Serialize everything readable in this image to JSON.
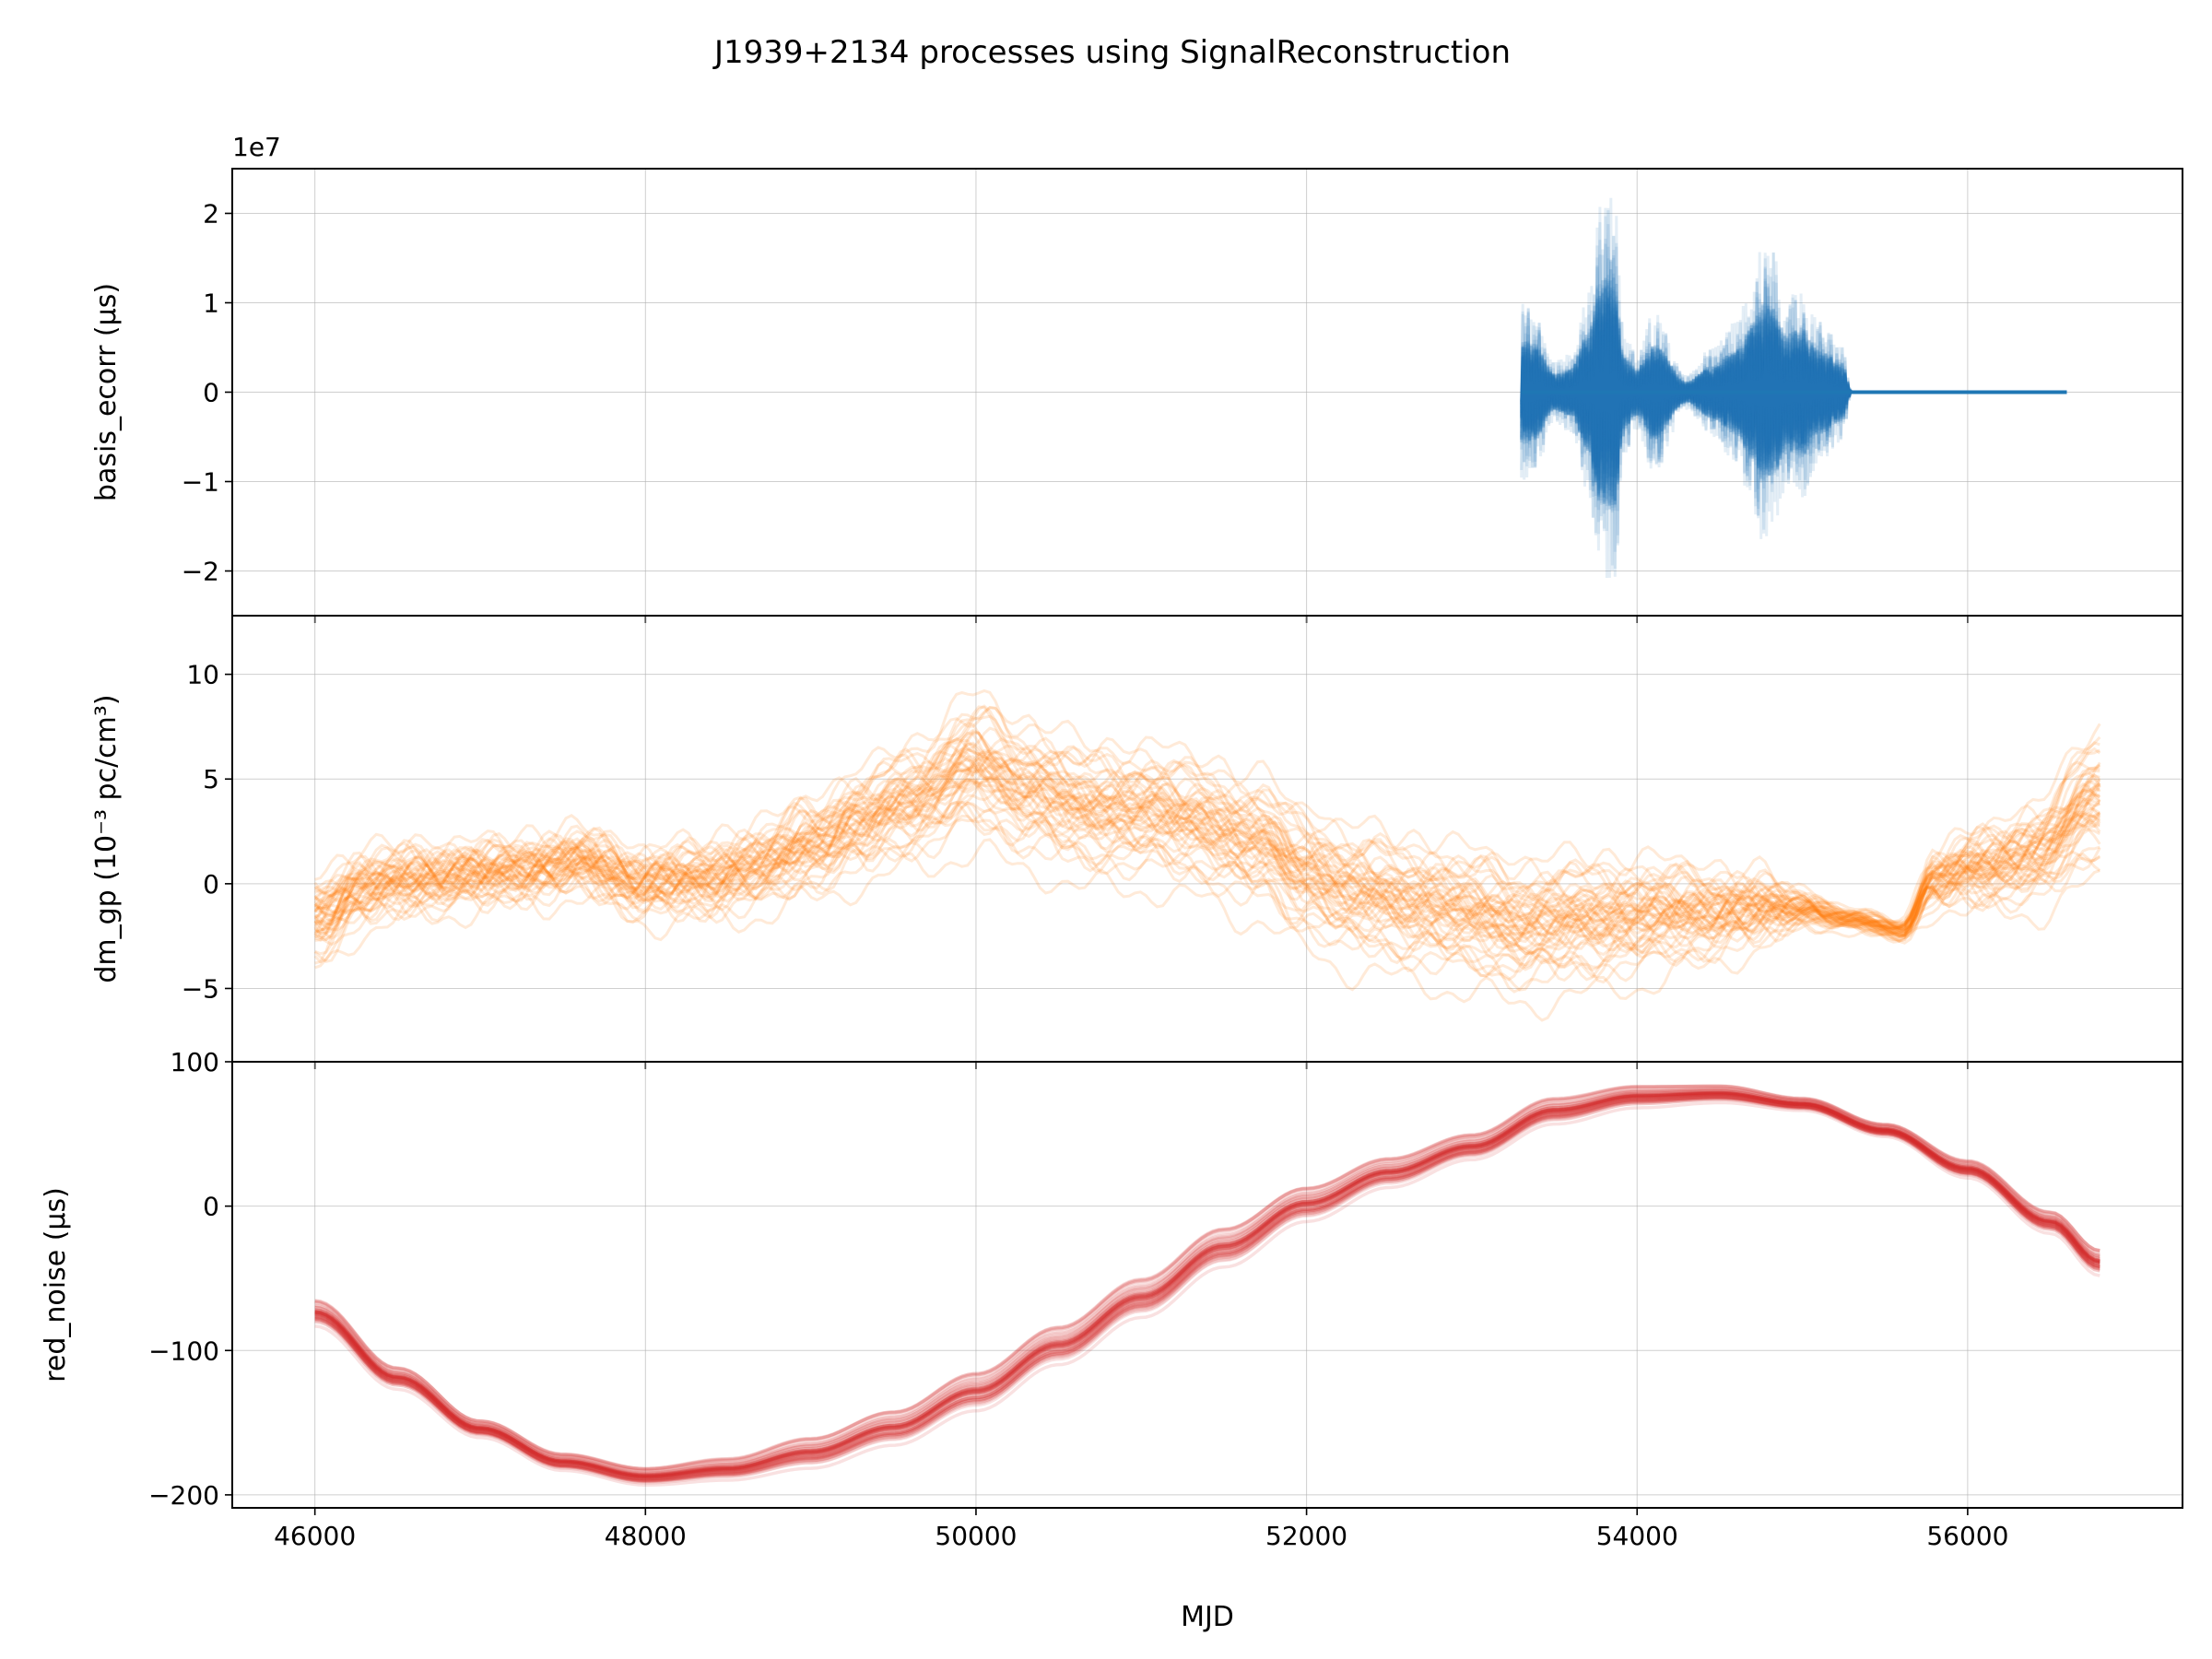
{
  "figure": {
    "title": "J1939+2134 processes using SignalReconstruction",
    "shared_xlabel": "MJD"
  },
  "chart_data": [
    {
      "type": "line",
      "panel": "basis_ecorr",
      "ylabel": "basis_ecorr (μs)",
      "offset_text": "1e7",
      "color": "#1f77b4",
      "xlim": [
        45500,
        57300
      ],
      "ylim": [
        -2.5,
        2.5
      ],
      "x_ticks": [
        46000,
        48000,
        50000,
        52000,
        54000,
        56000
      ],
      "y_ticks": [
        -2,
        -1,
        0,
        1,
        2
      ],
      "y_tick_labels": [
        "−2",
        "−1",
        "0",
        "1",
        "2"
      ],
      "grid": true,
      "n_realizations": 50,
      "x": [
        53300,
        53380,
        53500,
        53600,
        53700,
        53780,
        53860,
        53920,
        54000,
        54100,
        54300,
        54450,
        54600,
        54700,
        54760,
        54820,
        54900,
        55000,
        55100,
        55240,
        55300,
        56600
      ],
      "envelope": [
        1.0,
        0.9,
        0.35,
        0.45,
        1.1,
        2.1,
        2.25,
        0.7,
        0.45,
        0.9,
        0.2,
        0.5,
        0.8,
        1.3,
        1.7,
        1.6,
        1.1,
        1.2,
        0.8,
        0.55,
        0.0,
        0.0
      ]
    },
    {
      "type": "line",
      "panel": "dm_gp",
      "ylabel": "dm_gp (10⁻³ pc/cm³)",
      "color": "#ff7f0e",
      "xlim": [
        45500,
        57300
      ],
      "ylim": [
        -8.5,
        12.8
      ],
      "x_ticks": [
        46000,
        48000,
        50000,
        52000,
        54000,
        56000
      ],
      "y_ticks": [
        -5,
        0,
        5,
        10
      ],
      "y_tick_labels": [
        "−5",
        "0",
        "5",
        "10"
      ],
      "grid": true,
      "n_realizations": 50,
      "x": [
        46000,
        46300,
        46600,
        47000,
        47300,
        47600,
        48000,
        48300,
        48700,
        49000,
        49300,
        49600,
        50000,
        50300,
        50700,
        51000,
        51300,
        51700,
        52000,
        52300,
        52700,
        53000,
        53300,
        53700,
        54000,
        54300,
        54700,
        55000,
        55300,
        55600,
        55800,
        56100,
        56400,
        56800
      ],
      "mean": [
        -2.0,
        -0.5,
        0.0,
        0.2,
        0.5,
        0.8,
        -0.2,
        -0.1,
        0.5,
        1.5,
        2.5,
        3.5,
        5.0,
        4.0,
        3.0,
        3.0,
        2.5,
        1.5,
        0.0,
        -1.0,
        -1.5,
        -2.0,
        -2.5,
        -2.2,
        -2.0,
        -1.8,
        -1.5,
        -1.3,
        -1.8,
        -2.3,
        0.0,
        0.5,
        1.0,
        3.5
      ],
      "spread": [
        1.6,
        1.3,
        1.2,
        1.1,
        1.1,
        1.1,
        1.2,
        1.3,
        1.5,
        1.7,
        1.9,
        2.1,
        2.6,
        2.5,
        2.4,
        2.4,
        2.4,
        2.4,
        2.4,
        2.4,
        2.4,
        2.4,
        2.4,
        2.3,
        2.1,
        1.8,
        1.3,
        0.6,
        0.35,
        0.35,
        0.9,
        1.4,
        1.8,
        2.6
      ]
    },
    {
      "type": "line",
      "panel": "red_noise",
      "ylabel": "red_noise (μs)",
      "color": "#d62728",
      "xlim": [
        45500,
        57300
      ],
      "ylim": [
        -209,
        100
      ],
      "x_ticks": [
        46000,
        48000,
        50000,
        52000,
        54000,
        56000
      ],
      "x_tick_labels": [
        "46000",
        "48000",
        "50000",
        "52000",
        "54000",
        "56000"
      ],
      "y_ticks": [
        -200,
        -100,
        0,
        100
      ],
      "y_tick_labels": [
        "−200",
        "−100",
        "0",
        "100"
      ],
      "grid": true,
      "n_realizations": 50,
      "x": [
        46000,
        46500,
        47000,
        47500,
        48000,
        48500,
        49000,
        49500,
        50000,
        50500,
        51000,
        51500,
        52000,
        52500,
        53000,
        53500,
        54000,
        54500,
        55000,
        55500,
        56000,
        56500,
        56800
      ],
      "mean": [
        -75,
        -120,
        -155,
        -178,
        -188,
        -183,
        -172,
        -155,
        -130,
        -98,
        -65,
        -30,
        0,
        22,
        40,
        65,
        75,
        77,
        70,
        52,
        25,
        -12,
        -40
      ],
      "spread": [
        6,
        5,
        4,
        4,
        4,
        5,
        7,
        8,
        9,
        9,
        9,
        9,
        8,
        7,
        6,
        6,
        5,
        4,
        3,
        3,
        4,
        5,
        6
      ]
    }
  ]
}
